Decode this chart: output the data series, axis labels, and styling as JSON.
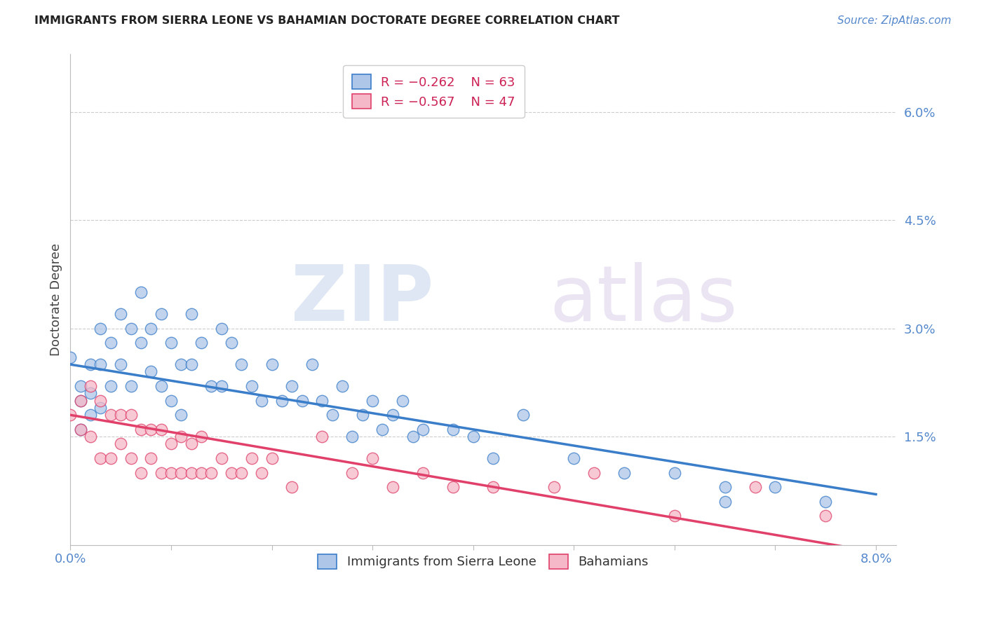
{
  "title": "IMMIGRANTS FROM SIERRA LEONE VS BAHAMIAN DOCTORATE DEGREE CORRELATION CHART",
  "source": "Source: ZipAtlas.com",
  "ylabel": "Doctorate Degree",
  "right_yticks": [
    "6.0%",
    "4.5%",
    "3.0%",
    "1.5%"
  ],
  "right_ytick_vals": [
    0.06,
    0.045,
    0.03,
    0.015
  ],
  "blue_color": "#aec6e8",
  "pink_color": "#f5b8c8",
  "blue_line_color": "#3a7dc9",
  "pink_line_color": "#e0406a",
  "watermark_zip": "ZIP",
  "watermark_atlas": "atlas",
  "blue_scatter_x": [
    0.0,
    0.001,
    0.001,
    0.001,
    0.002,
    0.002,
    0.002,
    0.003,
    0.003,
    0.003,
    0.004,
    0.004,
    0.005,
    0.005,
    0.006,
    0.006,
    0.007,
    0.007,
    0.008,
    0.008,
    0.009,
    0.009,
    0.01,
    0.01,
    0.011,
    0.011,
    0.012,
    0.012,
    0.013,
    0.014,
    0.015,
    0.015,
    0.016,
    0.017,
    0.018,
    0.019,
    0.02,
    0.021,
    0.022,
    0.023,
    0.024,
    0.025,
    0.026,
    0.027,
    0.028,
    0.029,
    0.03,
    0.031,
    0.032,
    0.033,
    0.034,
    0.035,
    0.038,
    0.04,
    0.042,
    0.045,
    0.05,
    0.055,
    0.06,
    0.065,
    0.065,
    0.07,
    0.075
  ],
  "blue_scatter_y": [
    0.026,
    0.022,
    0.02,
    0.016,
    0.025,
    0.021,
    0.018,
    0.03,
    0.025,
    0.019,
    0.028,
    0.022,
    0.032,
    0.025,
    0.03,
    0.022,
    0.035,
    0.028,
    0.03,
    0.024,
    0.032,
    0.022,
    0.028,
    0.02,
    0.025,
    0.018,
    0.032,
    0.025,
    0.028,
    0.022,
    0.03,
    0.022,
    0.028,
    0.025,
    0.022,
    0.02,
    0.025,
    0.02,
    0.022,
    0.02,
    0.025,
    0.02,
    0.018,
    0.022,
    0.015,
    0.018,
    0.02,
    0.016,
    0.018,
    0.02,
    0.015,
    0.016,
    0.016,
    0.015,
    0.012,
    0.018,
    0.012,
    0.01,
    0.01,
    0.008,
    0.006,
    0.008,
    0.006
  ],
  "pink_scatter_x": [
    0.0,
    0.001,
    0.001,
    0.002,
    0.002,
    0.003,
    0.003,
    0.004,
    0.004,
    0.005,
    0.005,
    0.006,
    0.006,
    0.007,
    0.007,
    0.008,
    0.008,
    0.009,
    0.009,
    0.01,
    0.01,
    0.011,
    0.011,
    0.012,
    0.012,
    0.013,
    0.013,
    0.014,
    0.015,
    0.016,
    0.017,
    0.018,
    0.019,
    0.02,
    0.022,
    0.025,
    0.028,
    0.03,
    0.032,
    0.035,
    0.038,
    0.042,
    0.048,
    0.052,
    0.06,
    0.068,
    0.075
  ],
  "pink_scatter_y": [
    0.018,
    0.02,
    0.016,
    0.022,
    0.015,
    0.02,
    0.012,
    0.018,
    0.012,
    0.018,
    0.014,
    0.018,
    0.012,
    0.016,
    0.01,
    0.016,
    0.012,
    0.016,
    0.01,
    0.014,
    0.01,
    0.015,
    0.01,
    0.014,
    0.01,
    0.015,
    0.01,
    0.01,
    0.012,
    0.01,
    0.01,
    0.012,
    0.01,
    0.012,
    0.008,
    0.015,
    0.01,
    0.012,
    0.008,
    0.01,
    0.008,
    0.008,
    0.008,
    0.01,
    0.004,
    0.008,
    0.004
  ],
  "blue_line_x0": 0.0,
  "blue_line_y0": 0.025,
  "blue_line_x1": 0.08,
  "blue_line_y1": 0.007,
  "pink_line_x0": 0.0,
  "pink_line_y0": 0.018,
  "pink_line_x1": 0.08,
  "pink_line_y1": -0.001,
  "xlim": [
    0.0,
    0.082
  ],
  "ylim": [
    0.0,
    0.068
  ]
}
